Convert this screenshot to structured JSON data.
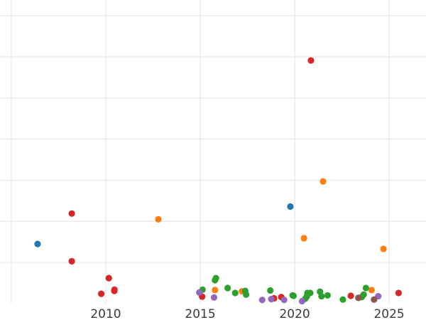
{
  "chart_data": {
    "type": "scatter",
    "title": "",
    "xlabel": "",
    "ylabel": "",
    "xlim": [
      2004.4,
      2026.95
    ],
    "ylim": [
      0,
      7.38
    ],
    "x_ticks": [
      2010,
      2015,
      2020,
      2025
    ],
    "x_grid": [
      2005,
      2010,
      2015,
      2020,
      2025
    ],
    "y_grid": [
      1,
      2,
      3,
      4,
      5,
      6,
      7
    ],
    "y_tick_labels_shown": false,
    "grid": true,
    "series": [
      {
        "color": "#1f77b4",
        "points": [
          [
            2019.77,
            2.36
          ],
          [
            2006.39,
            1.45
          ]
        ]
      },
      {
        "color": "#ff7f0e",
        "points": [
          [
            2021.5,
            2.97
          ],
          [
            2012.78,
            2.05
          ],
          [
            2020.49,
            1.59
          ],
          [
            2024.7,
            1.33
          ],
          [
            2015.78,
            0.33
          ],
          [
            2017.21,
            0.3
          ],
          [
            2024.07,
            0.33
          ]
        ]
      },
      {
        "color": "#2ca02c",
        "points": [
          [
            2015.12,
            0.34
          ],
          [
            2015.78,
            0.57
          ],
          [
            2015.83,
            0.62
          ],
          [
            2016.45,
            0.38
          ],
          [
            2016.85,
            0.26
          ],
          [
            2017.38,
            0.31
          ],
          [
            2017.43,
            0.22
          ],
          [
            2018.71,
            0.32
          ],
          [
            2019.89,
            0.2
          ],
          [
            2019.94,
            0.19
          ],
          [
            2020.56,
            0.12
          ],
          [
            2020.67,
            0.26
          ],
          [
            2020.82,
            0.26
          ],
          [
            2020.64,
            0.17
          ],
          [
            2021.34,
            0.29
          ],
          [
            2021.42,
            0.18
          ],
          [
            2021.74,
            0.2
          ],
          [
            2022.55,
            0.1
          ],
          [
            2023.55,
            0.16
          ],
          [
            2023.65,
            0.22
          ],
          [
            2023.77,
            0.38
          ]
        ]
      },
      {
        "color": "#d62728",
        "points": [
          [
            2020.86,
            5.91
          ],
          [
            2008.2,
            2.19
          ],
          [
            2008.2,
            1.03
          ],
          [
            2010.16,
            0.62
          ],
          [
            2009.76,
            0.24
          ],
          [
            2010.46,
            0.34
          ],
          [
            2010.45,
            0.31
          ],
          [
            2015.1,
            0.17
          ],
          [
            2018.91,
            0.13
          ],
          [
            2019.29,
            0.16
          ],
          [
            2022.97,
            0.19
          ],
          [
            2025.5,
            0.26
          ]
        ]
      },
      {
        "color": "#9467bd",
        "points": [
          [
            2014.95,
            0.27
          ],
          [
            2015.73,
            0.15
          ],
          [
            2018.28,
            0.09
          ],
          [
            2018.76,
            0.11
          ],
          [
            2019.44,
            0.09
          ],
          [
            2020.39,
            0.06
          ],
          [
            2024.42,
            0.18
          ]
        ]
      },
      {
        "color": "#8c564b",
        "points": [
          [
            2023.37,
            0.14
          ],
          [
            2024.2,
            0.1
          ]
        ]
      }
    ]
  }
}
